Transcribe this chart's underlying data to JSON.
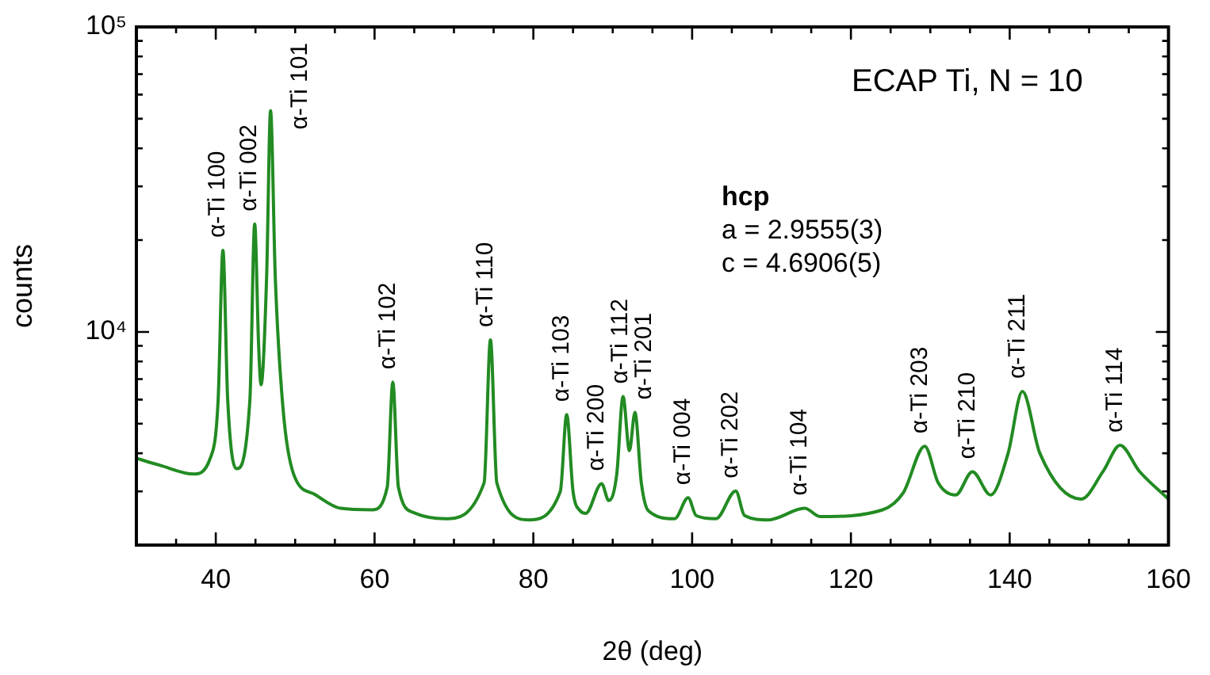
{
  "chart_data": {
    "type": "line",
    "xlabel": "2θ (deg)",
    "ylabel": "counts",
    "log": "y",
    "grid": false,
    "legend": false,
    "marker": "none",
    "line_style": "solid",
    "xlim": [
      30,
      160
    ],
    "xticks": [
      {
        "value": 30,
        "label": null
      },
      {
        "value": 35,
        "label": null
      },
      40,
      {
        "value": 45,
        "label": null
      },
      {
        "value": 50,
        "label": null
      },
      {
        "value": 55,
        "label": null
      },
      60,
      {
        "value": 65,
        "label": null
      },
      {
        "value": 70,
        "label": null
      },
      {
        "value": 75,
        "label": null
      },
      80,
      {
        "value": 85,
        "label": null
      },
      {
        "value": 90,
        "label": null
      },
      {
        "value": 95,
        "label": null
      },
      100,
      {
        "value": 105,
        "label": null
      },
      {
        "value": 110,
        "label": null
      },
      {
        "value": 115,
        "label": null
      },
      120,
      {
        "value": 125,
        "label": null
      },
      {
        "value": 130,
        "label": null
      },
      {
        "value": 135,
        "label": null
      },
      140,
      {
        "value": 145,
        "label": null
      },
      {
        "value": 150,
        "label": null
      },
      {
        "value": 155,
        "label": null
      },
      160
    ],
    "ylim": [
      2000,
      100000
    ],
    "yticks": [
      {
        "value": 2000,
        "label": null
      },
      {
        "value": 3000,
        "label": null
      },
      {
        "value": 4000,
        "label": null
      },
      {
        "value": 5000,
        "label": null
      },
      {
        "value": 6000,
        "label": null
      },
      {
        "value": 7000,
        "label": null
      },
      {
        "value": 8000,
        "label": null
      },
      {
        "value": 9000,
        "label": null
      },
      {
        "value": 10000,
        "label": "10⁴"
      },
      {
        "value": 20000,
        "label": null
      },
      {
        "value": 30000,
        "label": null
      },
      {
        "value": 40000,
        "label": null
      },
      {
        "value": 50000,
        "label": null
      },
      {
        "value": 60000,
        "label": null
      },
      {
        "value": 70000,
        "label": null
      },
      {
        "value": 80000,
        "label": null
      },
      {
        "value": 90000,
        "label": null
      },
      {
        "value": 100000,
        "label": "10⁵"
      }
    ],
    "series": [
      {
        "color": "#228b22",
        "x": [
          30,
          33,
          37.2,
          39.3,
          40.3,
          40.9,
          41.5,
          42.6,
          44.3,
          44.9,
          45.4,
          45.7,
          46.4,
          46.9,
          47.5,
          48.5,
          49.8,
          52.5,
          55.7,
          59.7,
          61.6,
          62.3,
          63.0,
          65,
          68.9,
          73.8,
          74.6,
          75.4,
          79.4,
          83.4,
          84.2,
          85.0,
          85.9,
          86.6,
          88.6,
          89.5,
          90.5,
          91.3,
          92.1,
          92.8,
          93.6,
          94.5,
          97.8,
          99.5,
          100.5,
          103.0,
          105.5,
          106.6,
          109.6,
          114.2,
          116.1,
          124.0,
          126.6,
          129.3,
          131.0,
          133.2,
          135.3,
          137.6,
          139.8,
          141.6,
          143.8,
          149.0,
          151.8,
          153.9,
          156.3,
          160
        ],
        "values": [
          3850,
          3650,
          3420,
          3850,
          6000,
          18500,
          6000,
          3560,
          6000,
          22600,
          9000,
          6710,
          15000,
          53100,
          15000,
          5500,
          3420,
          2930,
          2640,
          2610,
          3100,
          6850,
          3100,
          2550,
          2440,
          3200,
          9420,
          3200,
          2420,
          3000,
          5360,
          3000,
          2590,
          2540,
          3180,
          2800,
          3400,
          6140,
          4080,
          5450,
          3200,
          2590,
          2440,
          2860,
          2500,
          2440,
          3010,
          2500,
          2420,
          2640,
          2480,
          2610,
          2970,
          4220,
          3200,
          2920,
          3480,
          2920,
          4000,
          6380,
          4000,
          2830,
          3500,
          4250,
          3500,
          2830
        ]
      }
    ],
    "annotations": [
      "ECAP Ti, N = 10",
      "hcp",
      "a = 2.9555(3)",
      "c = 4.6906(5)",
      {
        "text": "α-Ti 100",
        "x": 40.9,
        "y": 18500
      },
      {
        "text": "α-Ti 002",
        "x": 44.9,
        "y": 22600
      },
      {
        "text": "α-Ti 101",
        "x": 46.9,
        "y": 53100
      },
      {
        "text": "α-Ti 102",
        "x": 62.3,
        "y": 6850
      },
      {
        "text": "α-Ti 110",
        "x": 74.6,
        "y": 9420
      },
      {
        "text": "α-Ti 103",
        "x": 84.2,
        "y": 5360
      },
      {
        "text": "α-Ti 200",
        "x": 88.6,
        "y": 3180
      },
      {
        "text": "α-Ti 112",
        "x": 91.3,
        "y": 6140
      },
      {
        "text": "α-Ti 201",
        "x": 92.8,
        "y": 5450
      },
      {
        "text": "α-Ti 004",
        "x": 99.5,
        "y": 2860
      },
      {
        "text": "α-Ti 202",
        "x": 105.5,
        "y": 3010
      },
      {
        "text": "α-Ti 104",
        "x": 114.2,
        "y": 2640
      },
      {
        "text": "α-Ti 203",
        "x": 129.3,
        "y": 4220
      },
      {
        "text": "α-Ti 210",
        "x": 135.3,
        "y": 3480
      },
      {
        "text": "α-Ti 211",
        "x": 141.6,
        "y": 6380
      },
      {
        "text": "α-Ti 114",
        "x": 153.9,
        "y": 4250
      }
    ]
  }
}
